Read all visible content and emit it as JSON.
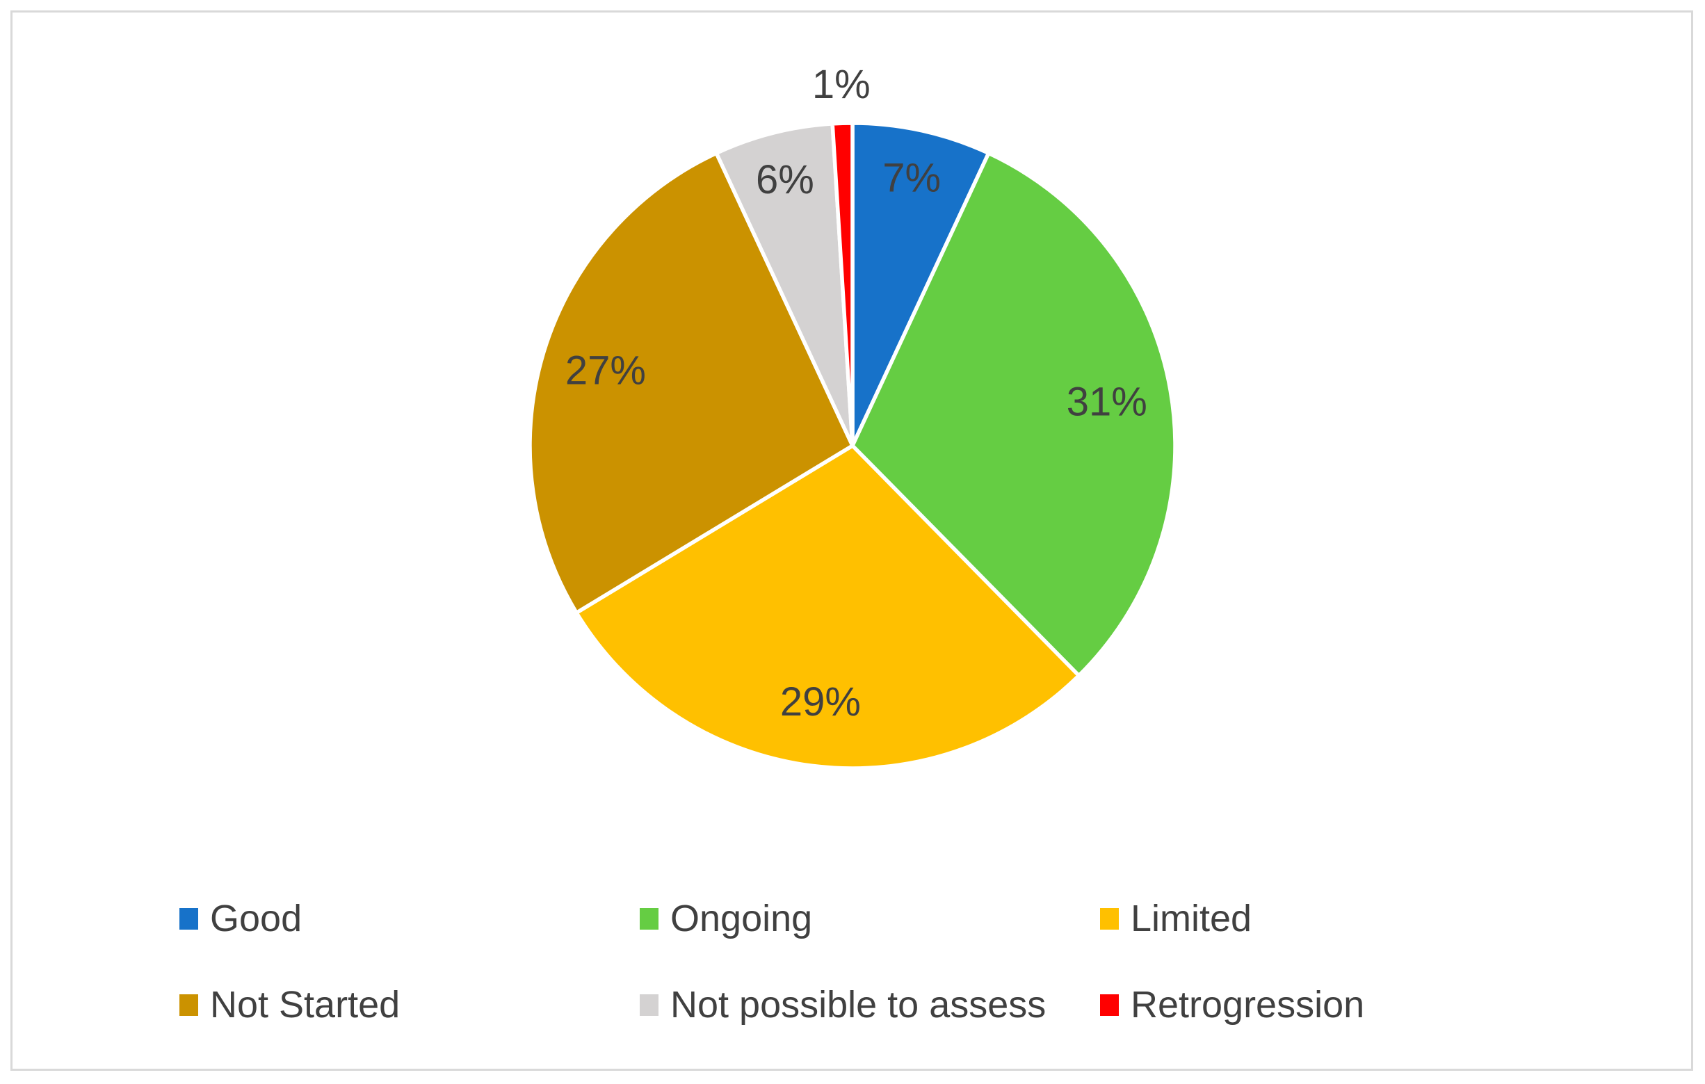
{
  "figure": {
    "background_color": "#ffffff",
    "border_color": "#d9d9d9"
  },
  "chart_data": {
    "type": "pie",
    "title": "",
    "direction": "clockwise",
    "start_angle_deg": 0,
    "slice_border_color": "#ffffff",
    "data_label_color": "#404040",
    "slices": [
      {
        "label": "Good",
        "value": 7,
        "display": "7%",
        "color": "#1772c9",
        "label_placement": "inside",
        "label_radius_frac": 0.85
      },
      {
        "label": "Ongoing",
        "value": 31,
        "display": "31%",
        "color": "#65cd43",
        "label_placement": "inside",
        "label_radius_frac": 0.8
      },
      {
        "label": "Limited",
        "value": 29,
        "display": "29%",
        "color": "#ffc000",
        "label_placement": "inside",
        "label_radius_frac": 0.8
      },
      {
        "label": "Not Started",
        "value": 27,
        "display": "27%",
        "color": "#cb9200",
        "label_placement": "inside",
        "label_radius_frac": 0.8
      },
      {
        "label": "Not possible to assess",
        "value": 6,
        "display": "6%",
        "color": "#d4d2d2",
        "label_placement": "inside",
        "label_radius_frac": 0.85
      },
      {
        "label": "Retrogression",
        "value": 1,
        "display": "1%",
        "color": "#ff0000",
        "label_placement": "outside",
        "label_radius_frac": 1.12
      }
    ],
    "legend": {
      "position": "bottom",
      "rows": 2,
      "columns": 3,
      "text_color": "#404040"
    }
  }
}
